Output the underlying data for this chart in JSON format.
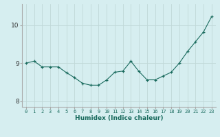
{
  "x": [
    0,
    1,
    2,
    3,
    4,
    5,
    6,
    7,
    8,
    9,
    10,
    11,
    12,
    13,
    14,
    15,
    16,
    17,
    18,
    19,
    20,
    21,
    22,
    23
  ],
  "y": [
    9.0,
    9.05,
    8.9,
    8.9,
    8.9,
    8.75,
    8.62,
    8.47,
    8.42,
    8.42,
    8.56,
    8.76,
    8.79,
    9.05,
    8.78,
    8.56,
    8.56,
    8.66,
    8.76,
    9.0,
    9.3,
    9.56,
    9.82,
    10.22
  ],
  "xlabel": "Humidex (Indice chaleur)",
  "line_color": "#1a6b5e",
  "bg_color": "#d6eef0",
  "grid_color": "#c0d8d8",
  "ylim_min": 7.85,
  "ylim_max": 10.55,
  "yticks": [
    8,
    9,
    10
  ],
  "xtick_labels": [
    "0",
    "1",
    "2",
    "3",
    "4",
    "5",
    "6",
    "7",
    "8",
    "9",
    "10",
    "11",
    "12",
    "13",
    "14",
    "15",
    "16",
    "17",
    "18",
    "19",
    "20",
    "21",
    "22",
    "23"
  ]
}
